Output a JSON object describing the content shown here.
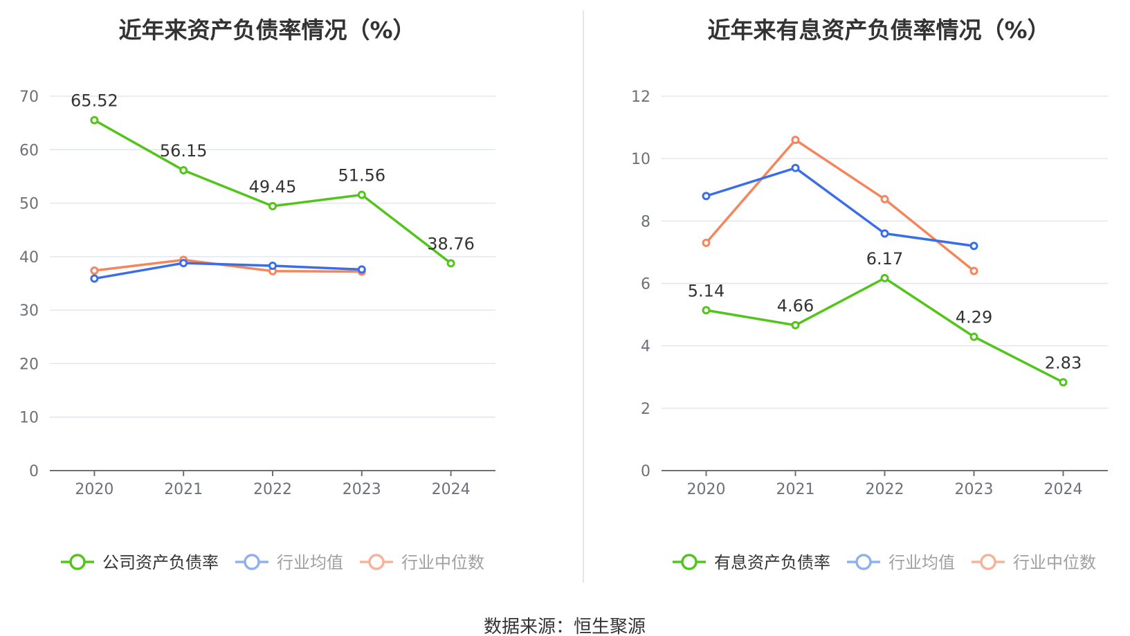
{
  "chart_data": [
    {
      "type": "line",
      "title": "近年来资产负债率情况（%）",
      "categories": [
        "2020",
        "2021",
        "2022",
        "2023",
        "2024"
      ],
      "ylim": [
        0,
        70
      ],
      "yticks": [
        0,
        10,
        20,
        30,
        40,
        50,
        60,
        70
      ],
      "grid": true,
      "legend_position": "bottom",
      "series": [
        {
          "name": "公司资产负债率",
          "color": "#52c41a",
          "values": [
            65.52,
            56.15,
            49.45,
            51.56,
            38.76
          ],
          "labels": [
            "65.52",
            "56.15",
            "49.45",
            "51.56",
            "38.76"
          ],
          "legend_active": true
        },
        {
          "name": "行业均值",
          "color": "#3a6ee8",
          "legend_color": "#8fb0f0",
          "values": [
            35.9,
            38.8,
            38.3,
            37.6,
            null
          ],
          "labels": [],
          "legend_active": false
        },
        {
          "name": "行业中位数",
          "color": "#f5855c",
          "legend_color": "#f5b49a",
          "values": [
            37.4,
            39.4,
            37.3,
            37.2,
            null
          ],
          "labels": [],
          "legend_active": false
        }
      ]
    },
    {
      "type": "line",
      "title": "近年来有息资产负债率情况（%）",
      "categories": [
        "2020",
        "2021",
        "2022",
        "2023",
        "2024"
      ],
      "ylim": [
        0,
        12
      ],
      "yticks": [
        0,
        2,
        4,
        6,
        8,
        10,
        12
      ],
      "grid": true,
      "legend_position": "bottom",
      "series": [
        {
          "name": "有息资产负债率",
          "color": "#52c41a",
          "values": [
            5.14,
            4.66,
            6.17,
            4.29,
            2.83
          ],
          "labels": [
            "5.14",
            "4.66",
            "6.17",
            "4.29",
            "2.83"
          ],
          "legend_active": true
        },
        {
          "name": "行业均值",
          "color": "#3a6ee8",
          "legend_color": "#8fb0f0",
          "values": [
            8.8,
            9.7,
            7.6,
            7.2,
            null
          ],
          "labels": [],
          "legend_active": false
        },
        {
          "name": "行业中位数",
          "color": "#f5855c",
          "legend_color": "#f5b49a",
          "values": [
            7.3,
            10.6,
            8.7,
            6.4,
            null
          ],
          "labels": [],
          "legend_active": false
        }
      ]
    }
  ],
  "footer": {
    "source": "数据来源：恒生聚源"
  },
  "colors": {
    "legend_inactive_text": "#a0a0a0",
    "legend_active_text": "#333333"
  }
}
